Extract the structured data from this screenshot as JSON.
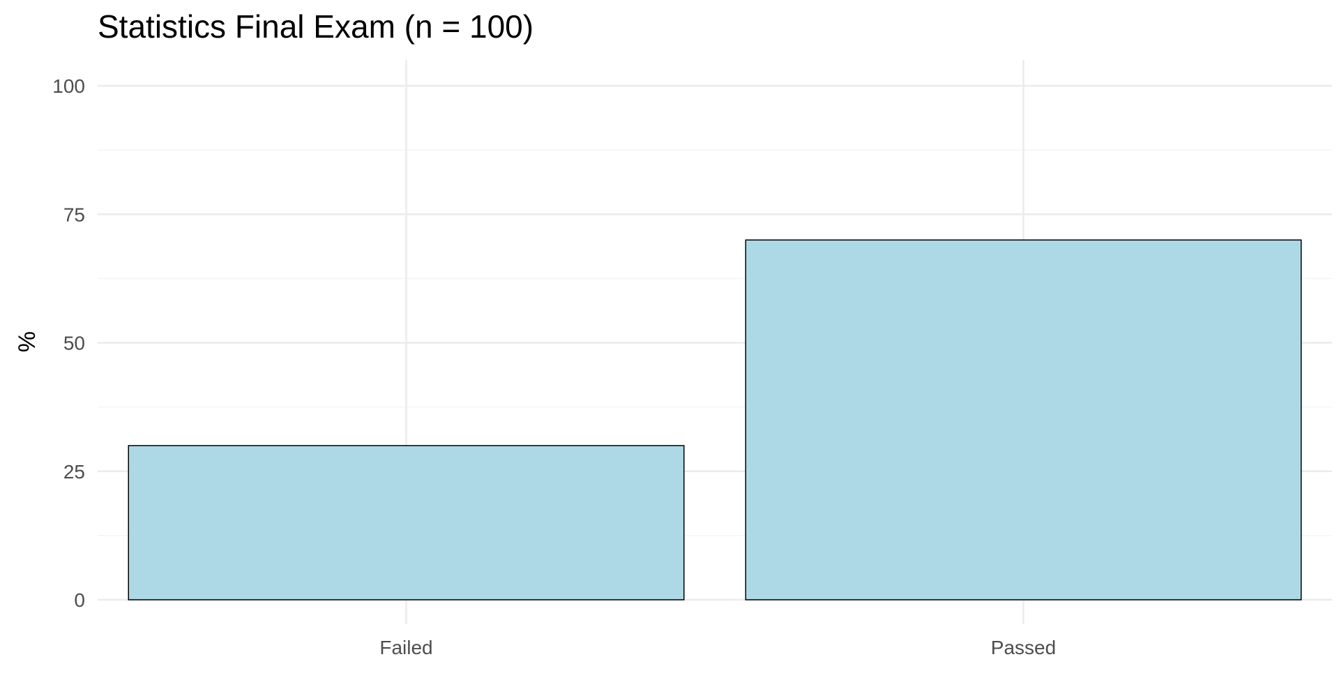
{
  "chart_data": {
    "type": "bar",
    "title": "Statistics Final Exam (n = 100)",
    "xlabel": "",
    "ylabel": "%",
    "categories": [
      "Failed",
      "Passed"
    ],
    "values": [
      30,
      70
    ],
    "ylim": [
      0,
      100
    ],
    "yticks": [
      0,
      25,
      50,
      75,
      100
    ],
    "grid": true,
    "legend": "none",
    "colors": {
      "bar_fill": "#add8e6",
      "bar_stroke": "#000000",
      "grid_major": "#ebebeb",
      "grid_minor": "#f4f4f4",
      "tick_text": "#4d4d4d",
      "background": "#ffffff"
    }
  }
}
